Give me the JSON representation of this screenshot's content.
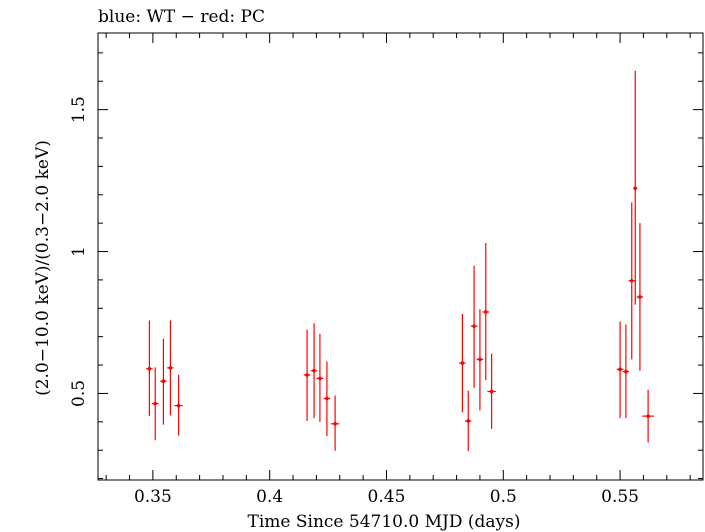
{
  "chart_data": {
    "type": "scatter",
    "title": "blue: WT − red: PC",
    "xlabel": "Time Since 54710.0 MJD (days)",
    "ylabel": "(2.0−10.0 keV)/(0.3−2.0 keV)",
    "xlim": [
      0.3265,
      0.5855
    ],
    "ylim": [
      0.195,
      1.77
    ],
    "x_ticks": [
      0.35,
      0.4,
      0.45,
      0.5,
      0.55
    ],
    "x_tick_labels": [
      "0.35",
      "0.4",
      "0.45",
      "0.5",
      "0.55"
    ],
    "y_ticks": [
      0.5,
      1,
      1.5
    ],
    "y_tick_labels": [
      "0.5",
      "1",
      "1.5"
    ],
    "grid": false,
    "series": [
      {
        "name": "PC",
        "color": "#ff0000",
        "points": [
          {
            "x": 0.3485,
            "y": 0.587,
            "yerr_low": 0.42,
            "yerr_high": 0.757,
            "xerr": 0.0014
          },
          {
            "x": 0.351,
            "y": 0.464,
            "yerr_low": 0.335,
            "yerr_high": 0.592,
            "xerr": 0.0014
          },
          {
            "x": 0.3545,
            "y": 0.543,
            "yerr_low": 0.39,
            "yerr_high": 0.693,
            "xerr": 0.0014
          },
          {
            "x": 0.3575,
            "y": 0.59,
            "yerr_low": 0.423,
            "yerr_high": 0.757,
            "xerr": 0.0014
          },
          {
            "x": 0.361,
            "y": 0.457,
            "yerr_low": 0.352,
            "yerr_high": 0.565,
            "xerr": 0.0018
          },
          {
            "x": 0.416,
            "y": 0.565,
            "yerr_low": 0.403,
            "yerr_high": 0.725,
            "xerr": 0.0014
          },
          {
            "x": 0.419,
            "y": 0.58,
            "yerr_low": 0.413,
            "yerr_high": 0.747,
            "xerr": 0.0014
          },
          {
            "x": 0.4215,
            "y": 0.553,
            "yerr_low": 0.4,
            "yerr_high": 0.71,
            "xerr": 0.0014
          },
          {
            "x": 0.4245,
            "y": 0.482,
            "yerr_low": 0.35,
            "yerr_high": 0.613,
            "xerr": 0.0014
          },
          {
            "x": 0.428,
            "y": 0.393,
            "yerr_low": 0.298,
            "yerr_high": 0.493,
            "xerr": 0.0018
          },
          {
            "x": 0.4825,
            "y": 0.607,
            "yerr_low": 0.433,
            "yerr_high": 0.78,
            "xerr": 0.0014
          },
          {
            "x": 0.485,
            "y": 0.403,
            "yerr_low": 0.297,
            "yerr_high": 0.51,
            "xerr": 0.0014
          },
          {
            "x": 0.4875,
            "y": 0.737,
            "yerr_low": 0.52,
            "yerr_high": 0.95,
            "xerr": 0.0014
          },
          {
            "x": 0.49,
            "y": 0.62,
            "yerr_low": 0.44,
            "yerr_high": 0.797,
            "xerr": 0.0014
          },
          {
            "x": 0.4925,
            "y": 0.787,
            "yerr_low": 0.547,
            "yerr_high": 1.03,
            "xerr": 0.0014
          },
          {
            "x": 0.495,
            "y": 0.507,
            "yerr_low": 0.375,
            "yerr_high": 0.64,
            "xerr": 0.0018
          },
          {
            "x": 0.55,
            "y": 0.585,
            "yerr_low": 0.413,
            "yerr_high": 0.753,
            "xerr": 0.0014
          },
          {
            "x": 0.5525,
            "y": 0.577,
            "yerr_low": 0.413,
            "yerr_high": 0.743,
            "xerr": 0.0014
          },
          {
            "x": 0.555,
            "y": 0.897,
            "yerr_low": 0.62,
            "yerr_high": 1.173,
            "xerr": 0.0014
          },
          {
            "x": 0.5565,
            "y": 1.223,
            "yerr_low": 0.813,
            "yerr_high": 1.637,
            "xerr": 0.0009
          },
          {
            "x": 0.5585,
            "y": 0.84,
            "yerr_low": 0.58,
            "yerr_high": 1.1,
            "xerr": 0.0014
          },
          {
            "x": 0.562,
            "y": 0.42,
            "yerr_low": 0.327,
            "yerr_high": 0.513,
            "xerr": 0.0025
          }
        ]
      }
    ]
  }
}
